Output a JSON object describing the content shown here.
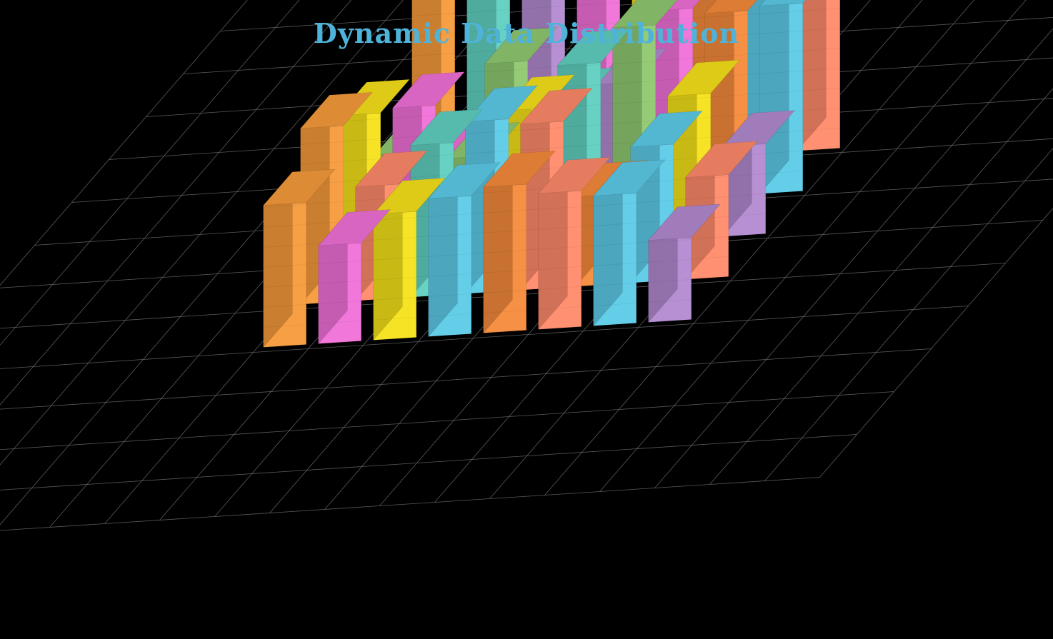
{
  "chart_data": {
    "type": "bar3d",
    "title": "Dynamic Data Distribution",
    "xlabel": "",
    "ylabel": "",
    "zlabel": "",
    "grid": true,
    "background": "#000000",
    "grid_color": "#5a5a5a",
    "rows": 5,
    "cols": 8,
    "values": [
      [
        10.0,
        8.9,
        9.4,
        10.4,
        9.7,
        10.4,
        10.5,
        10.2
      ],
      [
        3.2,
        3.0,
        7.4,
        5.2,
        6.0,
        9.5,
        9.2,
        9.4
      ],
      [
        7.3,
        7.5,
        4.8,
        7.0,
        9.1,
        10.8,
        7.2,
        4.5
      ],
      [
        8.8,
        5.7,
        7.6,
        8.6,
        8.3,
        4.5,
        6.8,
        5.1
      ],
      [
        7.1,
        4.9,
        6.3,
        6.9,
        7.3,
        6.8,
        6.5,
        4.1
      ]
    ],
    "colors": [
      [
        "#f59a3b",
        "#5fd0c0",
        "#b28ad0",
        "#f070d8",
        "#f5e21a",
        "#f58a3a",
        "#5ccbe8",
        "#ff8a6a"
      ],
      [
        "#8fc870",
        "#f070d8",
        "#8fc870",
        "#5fd0c0",
        "#b28ad0",
        "#f070d8",
        "#f58a3a",
        "#5ccbe8"
      ],
      [
        "#f5e21a",
        "#f070d8",
        "#8fc870",
        "#f5e21a",
        "#5fd0c0",
        "#8fc870",
        "#f5e21a",
        "#b28ad0"
      ],
      [
        "#f59a3b",
        "#ff8a6a",
        "#5fd0c0",
        "#5ccbe8",
        "#ff8a6a",
        "#f58a3a",
        "#5ccbe8",
        "#ff8a6a"
      ],
      [
        "#f59a3b",
        "#f070d8",
        "#f5e21a",
        "#5ccbe8",
        "#f58a3a",
        "#ff8a6a",
        "#5ccbe8",
        "#b28ad0"
      ]
    ]
  }
}
